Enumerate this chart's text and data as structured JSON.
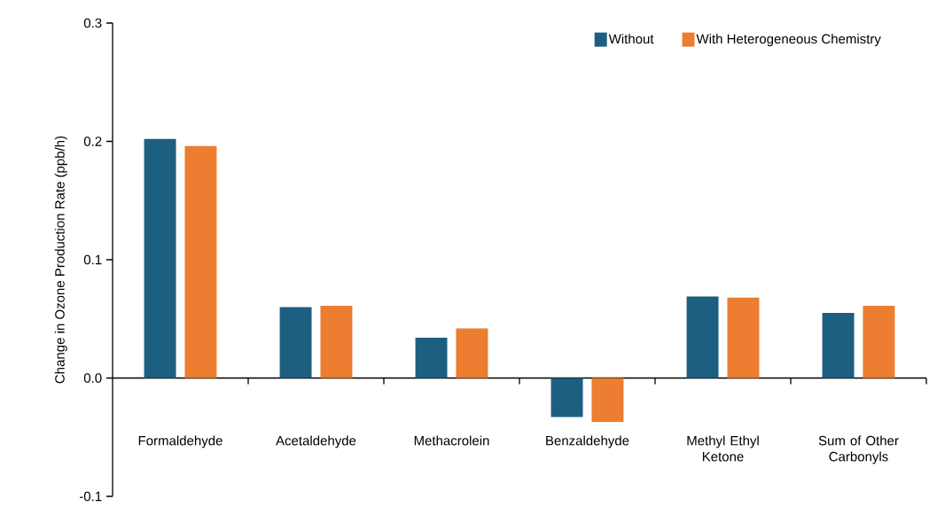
{
  "chart_data": {
    "type": "bar",
    "ylabel": "Change in Ozone Production Rate  (ppb/h)",
    "categories": [
      "Formaldehyde",
      "Acetaldehyde",
      "Methacrolein",
      "Benzaldehyde",
      "Methyl Ethyl Ketone",
      "Sum of Other Carbonyls"
    ],
    "series": [
      {
        "name": "Without",
        "color": "#1d5f80",
        "values": [
          0.202,
          0.06,
          0.034,
          -0.033,
          0.069,
          0.055
        ]
      },
      {
        "name": "With Heterogeneous Chemistry",
        "color": "#ed7d31",
        "values": [
          0.196,
          0.061,
          0.042,
          -0.037,
          0.068,
          0.061
        ]
      }
    ],
    "ylim": [
      -0.1,
      0.3
    ],
    "yticks": [
      -0.1,
      {
        "value": 0,
        "label": "0.0"
      },
      0.1,
      0.2,
      0.3
    ],
    "legend": "top right"
  }
}
